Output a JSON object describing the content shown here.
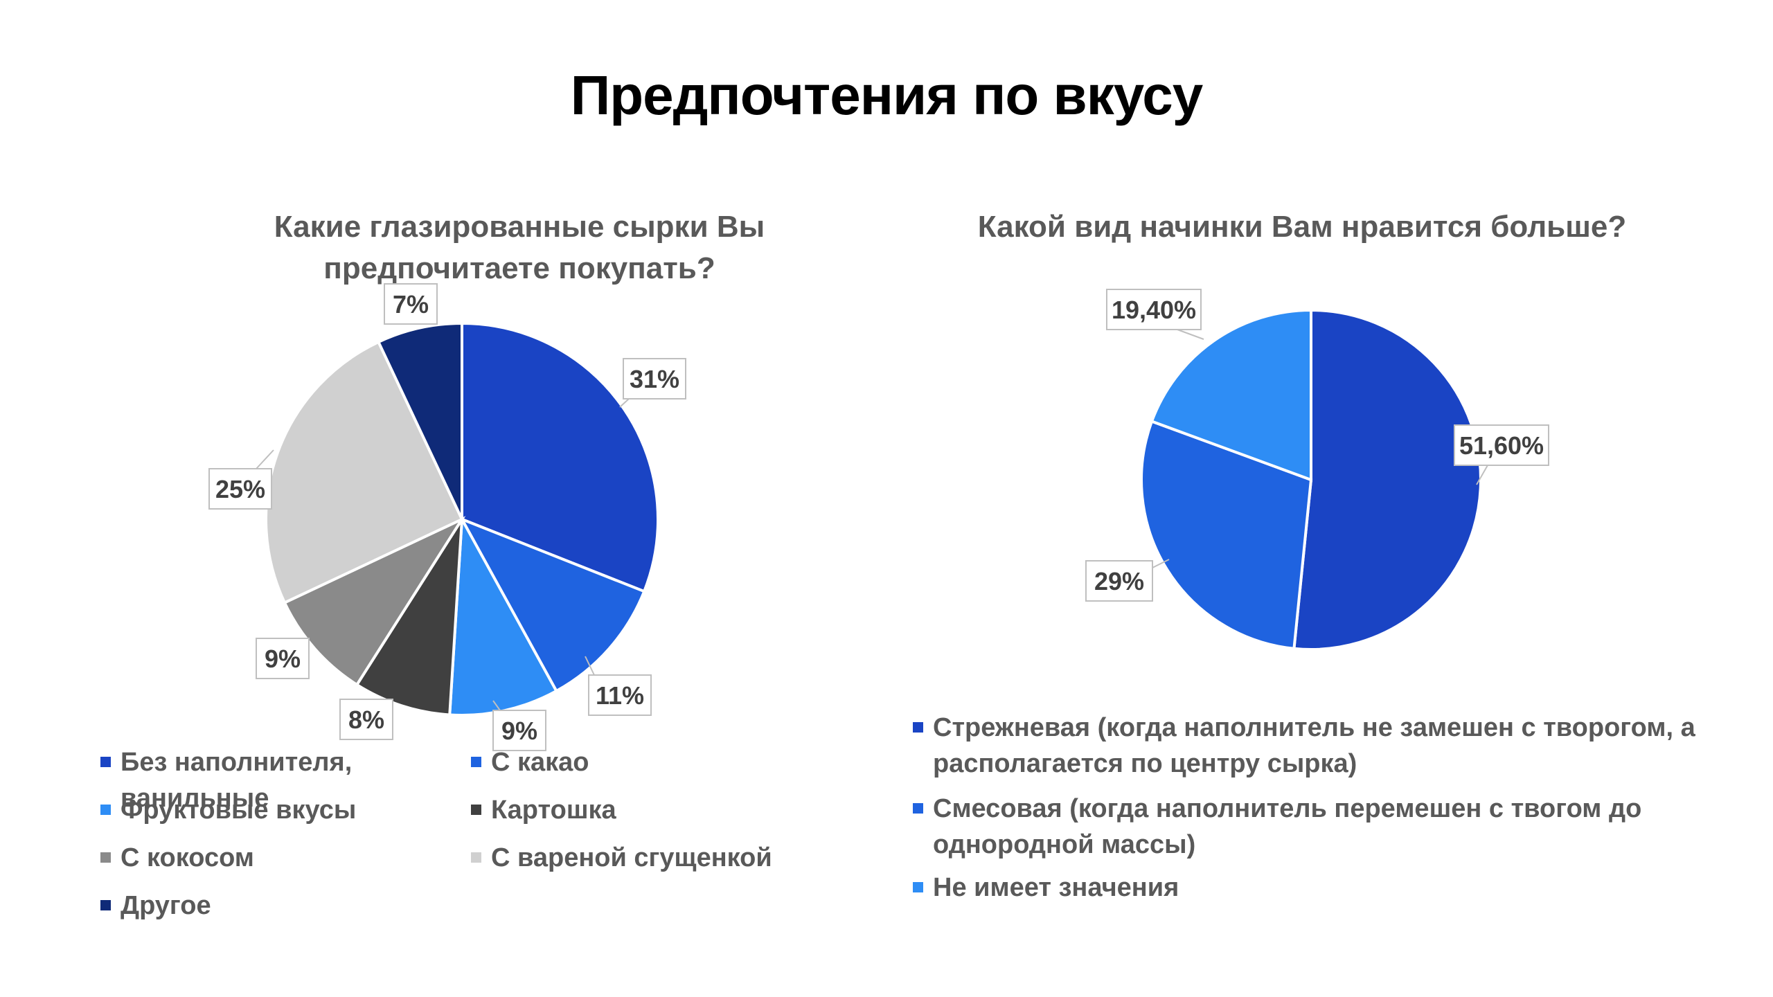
{
  "page": {
    "title": "Предпочтения по вкусу"
  },
  "chart_data": [
    {
      "type": "pie",
      "title": "Какие глазированные сырки Вы предпочитаете покупать?",
      "categories": [
        "Без наполнителя, ванильные",
        "С какао",
        "Фруктовые вкусы",
        "Картошка",
        "С кокосом",
        "С вареной сгущенкой",
        "Другое"
      ],
      "values": [
        31,
        11,
        9,
        8,
        9,
        25,
        7
      ],
      "data_labels": [
        "31%",
        "11%",
        "9%",
        "8%",
        "9%",
        "25%",
        "7%"
      ],
      "colors": [
        "#1a44c4",
        "#1f63e0",
        "#2e8df5",
        "#404040",
        "#8a8a8a",
        "#d0d0d0",
        "#0f2a78"
      ],
      "legend": "bottom"
    },
    {
      "type": "pie",
      "title": "Какой вид начинки Вам нравится больше?",
      "categories": [
        "Стрежневая (когда наполнитель не замешен с творогом, а располагается по центру сырка)",
        "Смесовая (когда наполнитель перемешен с твогом до однородной массы)",
        "Не имеет значения"
      ],
      "values": [
        51.6,
        29,
        19.4
      ],
      "data_labels": [
        "51,60%",
        "29%",
        "19,40%"
      ],
      "colors": [
        "#1a44c4",
        "#1f63e0",
        "#2e8df5"
      ],
      "legend": "bottom"
    }
  ]
}
